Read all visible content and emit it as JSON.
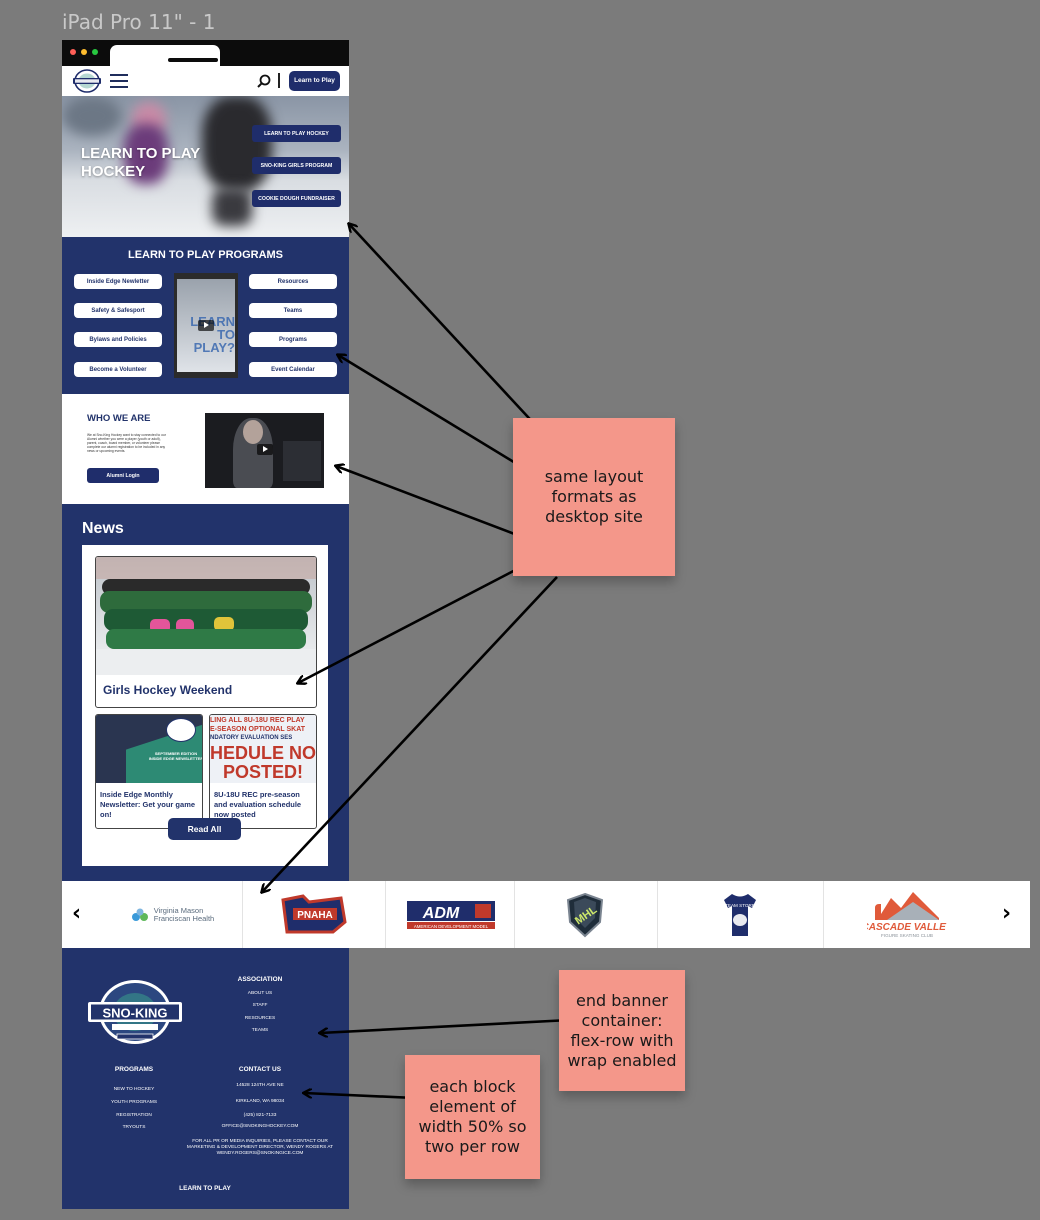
{
  "frame_label": "iPad Pro 11\" - 1",
  "header": {
    "cta_label": "Learn to Play"
  },
  "hero": {
    "title": "LEARN TO PLAY HOCKEY",
    "buttons": [
      "LEARN TO PLAY HOCKEY",
      "SNO-KING GIRLS PROGRAM",
      "COOKIE DOUGH FUNDRAISER"
    ]
  },
  "programs": {
    "title": "LEARN TO PLAY PROGRAMS",
    "left_buttons": [
      "Inside Edge Newletter",
      "Safety & Safesport",
      "Bylaws and Policies",
      "Become a Volunteer"
    ],
    "right_buttons": [
      "Resources",
      "Teams",
      "Programs",
      "Event Calendar"
    ],
    "video_text": "LEARN TO PLAY?"
  },
  "who": {
    "title": "WHO WE ARE",
    "body": "We at Sno-King Hockey want to stay connected to our Alumni whether you were a player (youth or adult), parent, coach, board member, or volunteer please complete our alumni registration to be included in any news or upcoming events.",
    "alumni_label": "Alumni Login"
  },
  "news": {
    "title": "News",
    "feature_title": "Girls Hockey Weekend",
    "mini": [
      {
        "caption": "Inside Edge Monthly Newsletter: Get your game on!",
        "img_text": "SEPTEMBER EDITION INSIDE EDGE NEWSLETTER"
      },
      {
        "caption": "8U-18U REC pre-season and evaluation schedule now posted",
        "img_line1": "LING ALL 8U-18U REC PLAY",
        "img_line2": "E-SEASON OPTIONAL SKAT",
        "img_line3": "NDATORY EVALUATION SES",
        "img_big1": "HEDULE NO",
        "img_big2": "POSTED!"
      }
    ],
    "read_all": "Read All"
  },
  "sponsors": {
    "items": [
      "Virginia Mason Franciscan Health",
      "PNAHA",
      "ADM",
      "MHL",
      "TEAM STORE",
      "CASCADE VALLEY"
    ],
    "vm_line1": "Virginia Mason",
    "vm_line2": "Franciscan Health",
    "adm_sub": "AMERICAN DEVELOPMENT MODEL",
    "cv_sub": "FIGURE SKATING CLUB"
  },
  "footer": {
    "association_title": "ASSOCIATION",
    "association_links": [
      "ABOUT US",
      "STAFF",
      "RESOURCES",
      "TEAMS"
    ],
    "programs_title": "PROGRAMS",
    "programs_links": [
      "NEW TO HOCKEY",
      "YOUTH PROGRAMS",
      "REGISTRATION",
      "TRYOUTS"
    ],
    "contact_title": "CONTACT US",
    "contact_lines": [
      "14528 124TH AVE NE",
      "KIRKLAND, WA 98034",
      "(425) 821-7133",
      "OFFICE@SNOKINGHOCKEY.COM"
    ],
    "media_note": "FOR ALL PR OR MEDIA INQUIRIES, PLEASE CONTACT OUR MARKETING & DEVELOPMENT DIRECTOR, WENDY ROGERS AT WENDY.ROGERS@SNOKINGICE.COM",
    "bottom_link": "LEARN TO PLAY"
  },
  "notes": [
    "same layout formats as desktop site",
    "end banner container: flex-row with wrap enabled",
    "each block element of width 50% so two per row"
  ],
  "colors": {
    "navy": "#22336b",
    "sticky": "#f4978a",
    "canvas": "#7b7b7b"
  }
}
